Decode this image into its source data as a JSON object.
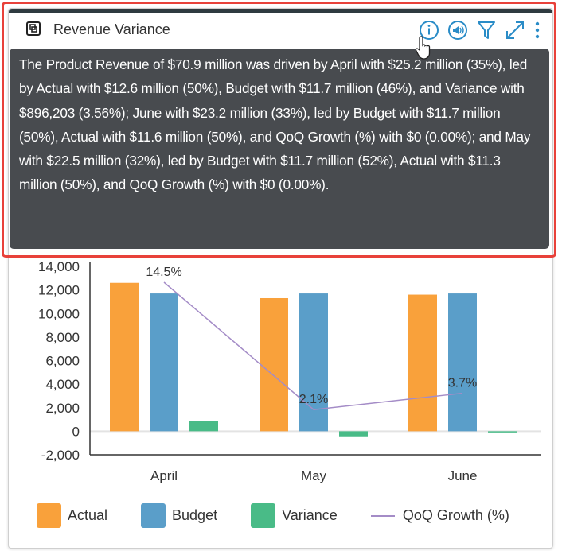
{
  "widget": {
    "title": "Revenue Variance",
    "actions": [
      "info-icon",
      "audio-icon",
      "filter-icon",
      "expand-icon",
      "more-icon"
    ]
  },
  "tooltip": {
    "text": "The Product Revenue of $70.9 million was driven by April with $25.2 million (35%), led by Actual with $12.6 million (50%), Budget with $11.7 million (46%), and Variance with $896,203 (3.56%); June with $23.2 million (33%), led by Budget with $11.7 million (50%), Actual with $11.6 million (50%), and QoQ Growth (%) with $0 (0.00%); and May with $22.5 million (32%), led by Budget with $11.7 million (52%), Actual with $11.3 million (50%), and QoQ Growth (%) with $0 (0.00%)."
  },
  "chart_data": {
    "type": "bar",
    "categories": [
      "April",
      "May",
      "June"
    ],
    "y_ticks": [
      "14,000",
      "12,000",
      "10,000",
      "8,000",
      "6,000",
      "4,000",
      "2,000",
      "0",
      "-2,000"
    ],
    "ylim": [
      -2000,
      14000
    ],
    "series": [
      {
        "name": "Actual",
        "values": [
          12600,
          11300,
          11600
        ],
        "color": "#f9a13b"
      },
      {
        "name": "Budget",
        "values": [
          11700,
          11700,
          11700
        ],
        "color": "#5a9ec9"
      },
      {
        "name": "Variance",
        "values": [
          896,
          -430,
          -100
        ],
        "color": "#49bb87"
      }
    ],
    "line_series": {
      "name": "QoQ Growth (%)",
      "values": [
        14.5,
        2.1,
        3.7
      ],
      "labels": [
        "14.5%",
        "2.1%",
        "3.7%"
      ],
      "color": "#a48cc7"
    },
    "grid": false,
    "legend": "bottom"
  }
}
